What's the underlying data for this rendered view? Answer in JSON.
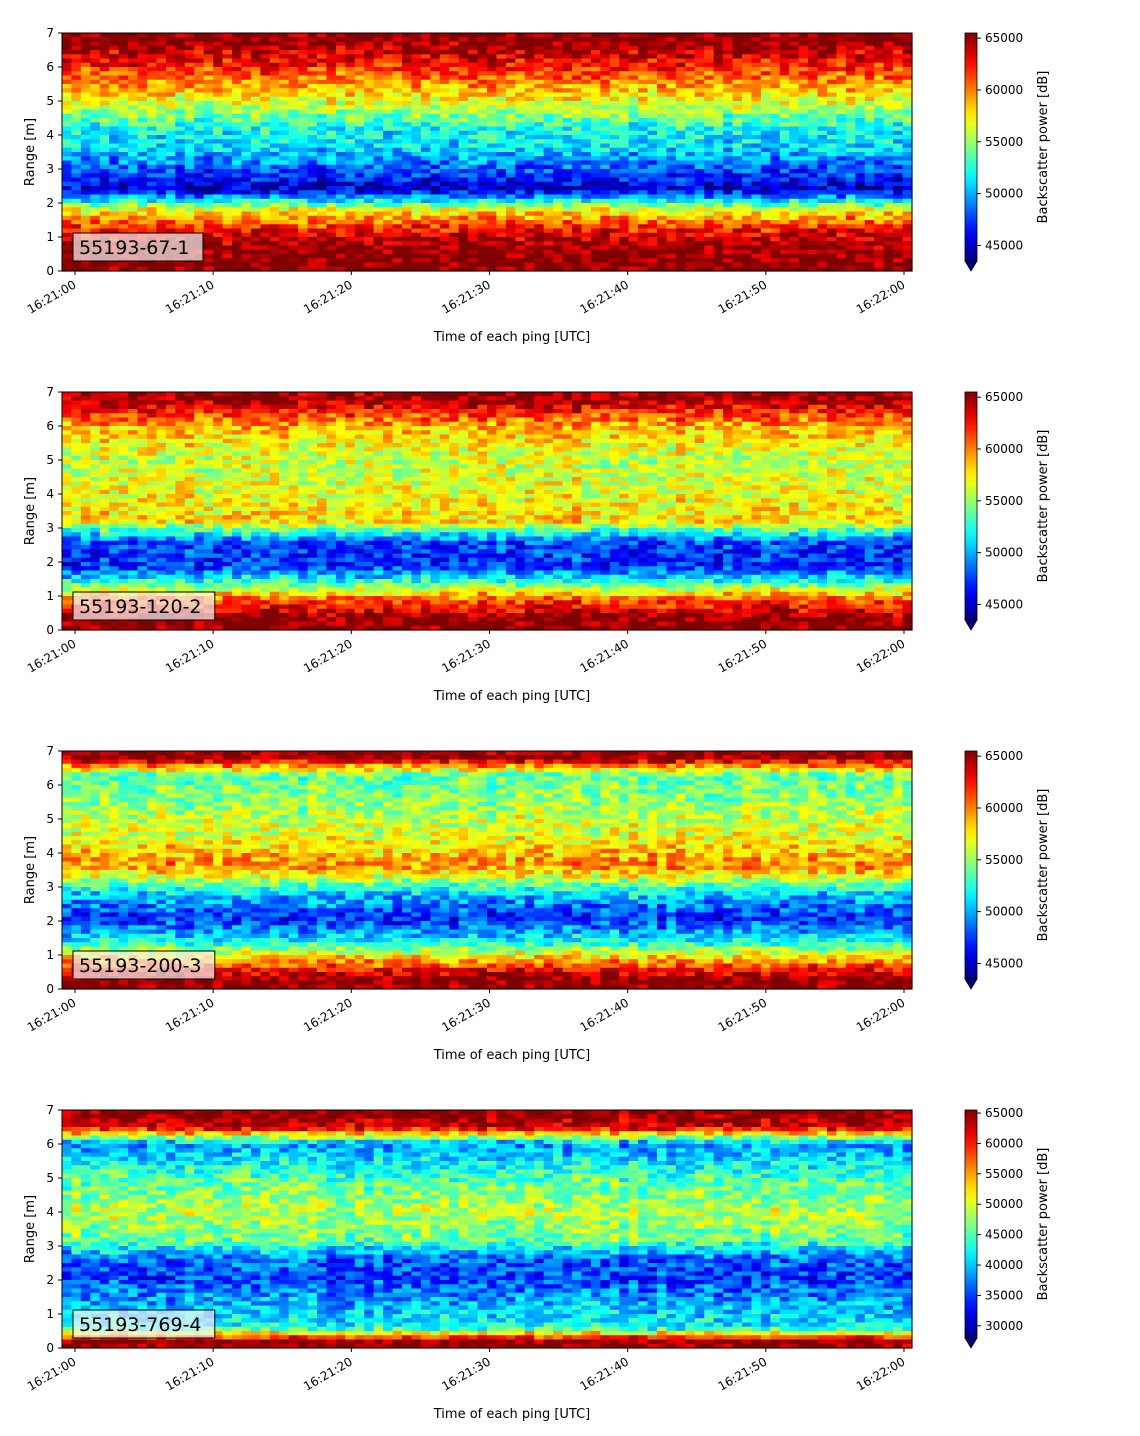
{
  "chart_data": [
    {
      "type": "heatmap",
      "label": "55193-67-1",
      "xlabel": "Time of each ping [UTC]",
      "ylabel": "Range [m]",
      "colorbar_label": "Backscatter power [dB]",
      "x_ticks": [
        "16:21:00",
        "16:21:10",
        "16:21:20",
        "16:21:30",
        "16:21:40",
        "16:21:50",
        "16:22:00"
      ],
      "x_range": [
        "16:21:00",
        "16:22:00"
      ],
      "y_ticks": [
        0,
        1,
        2,
        3,
        4,
        5,
        6,
        7
      ],
      "ylim": [
        0,
        7
      ],
      "colorbar_ticks": [
        45000,
        50000,
        55000,
        60000,
        65000
      ],
      "clim": [
        43500,
        65500
      ],
      "colormap": "jet",
      "range_profile": [
        {
          "range": 0.3,
          "value": 65500
        },
        {
          "range": 0.6,
          "value": 65500
        },
        {
          "range": 1.0,
          "value": 64000
        },
        {
          "range": 1.4,
          "value": 61000
        },
        {
          "range": 1.8,
          "value": 57000
        },
        {
          "range": 2.4,
          "value": 45000
        },
        {
          "range": 3.0,
          "value": 48000
        },
        {
          "range": 3.6,
          "value": 51000
        },
        {
          "range": 4.2,
          "value": 52000
        },
        {
          "range": 5.0,
          "value": 57000
        },
        {
          "range": 5.6,
          "value": 60000
        },
        {
          "range": 6.2,
          "value": 63000
        },
        {
          "range": 6.8,
          "value": 65500
        }
      ]
    },
    {
      "type": "heatmap",
      "label": "55193-120-2",
      "xlabel": "Time of each ping [UTC]",
      "ylabel": "Range [m]",
      "colorbar_label": "Backscatter power [dB]",
      "x_ticks": [
        "16:21:00",
        "16:21:10",
        "16:21:20",
        "16:21:30",
        "16:21:40",
        "16:21:50",
        "16:22:00"
      ],
      "x_range": [
        "16:21:00",
        "16:22:00"
      ],
      "y_ticks": [
        0,
        1,
        2,
        3,
        4,
        5,
        6,
        7
      ],
      "ylim": [
        0,
        7
      ],
      "colorbar_ticks": [
        45000,
        50000,
        55000,
        60000,
        65000
      ],
      "clim": [
        43500,
        65500
      ],
      "colormap": "jet",
      "range_profile": [
        {
          "range": 0.3,
          "value": 65500
        },
        {
          "range": 0.9,
          "value": 61000
        },
        {
          "range": 1.4,
          "value": 53000
        },
        {
          "range": 1.9,
          "value": 47000
        },
        {
          "range": 2.6,
          "value": 48000
        },
        {
          "range": 3.2,
          "value": 58000
        },
        {
          "range": 4.0,
          "value": 57000
        },
        {
          "range": 5.0,
          "value": 56000
        },
        {
          "range": 6.0,
          "value": 59000
        },
        {
          "range": 6.8,
          "value": 65000
        }
      ]
    },
    {
      "type": "heatmap",
      "label": "55193-200-3",
      "xlabel": "Time of each ping [UTC]",
      "ylabel": "Range [m]",
      "colorbar_label": "Backscatter power [dB]",
      "x_ticks": [
        "16:21:00",
        "16:21:10",
        "16:21:20",
        "16:21:30",
        "16:21:40",
        "16:21:50",
        "16:22:00"
      ],
      "x_range": [
        "16:21:00",
        "16:22:00"
      ],
      "y_ticks": [
        0,
        1,
        2,
        3,
        4,
        5,
        6,
        7
      ],
      "ylim": [
        0,
        7
      ],
      "colorbar_ticks": [
        45000,
        50000,
        55000,
        60000,
        65000
      ],
      "clim": [
        43500,
        65500
      ],
      "colormap": "jet",
      "range_profile": [
        {
          "range": 0.3,
          "value": 65500
        },
        {
          "range": 0.8,
          "value": 60000
        },
        {
          "range": 1.4,
          "value": 52000
        },
        {
          "range": 2.1,
          "value": 47000
        },
        {
          "range": 2.8,
          "value": 51000
        },
        {
          "range": 3.6,
          "value": 60000
        },
        {
          "range": 4.5,
          "value": 57000
        },
        {
          "range": 5.5,
          "value": 55000
        },
        {
          "range": 6.3,
          "value": 54000
        },
        {
          "range": 6.8,
          "value": 65500
        }
      ]
    },
    {
      "type": "heatmap",
      "label": "55193-769-4",
      "xlabel": "Time of each ping [UTC]",
      "ylabel": "Range [m]",
      "colorbar_label": "Backscatter power [dB]",
      "x_ticks": [
        "16:21:00",
        "16:21:10",
        "16:21:20",
        "16:21:30",
        "16:21:40",
        "16:21:50",
        "16:22:00"
      ],
      "x_range": [
        "16:21:00",
        "16:22:00"
      ],
      "y_ticks": [
        0,
        1,
        2,
        3,
        4,
        5,
        6,
        7
      ],
      "ylim": [
        0,
        7
      ],
      "colorbar_ticks": [
        30000,
        35000,
        40000,
        45000,
        50000,
        55000,
        60000,
        65000
      ],
      "clim": [
        28000,
        65500
      ],
      "colormap": "jet",
      "range_profile": [
        {
          "range": 0.2,
          "value": 65500
        },
        {
          "range": 0.6,
          "value": 42000
        },
        {
          "range": 1.2,
          "value": 40000
        },
        {
          "range": 2.0,
          "value": 35000
        },
        {
          "range": 2.6,
          "value": 36000
        },
        {
          "range": 3.2,
          "value": 46000
        },
        {
          "range": 4.0,
          "value": 49000
        },
        {
          "range": 5.0,
          "value": 45000
        },
        {
          "range": 6.0,
          "value": 38000
        },
        {
          "range": 6.5,
          "value": 63000
        },
        {
          "range": 6.9,
          "value": 65500
        }
      ]
    }
  ]
}
